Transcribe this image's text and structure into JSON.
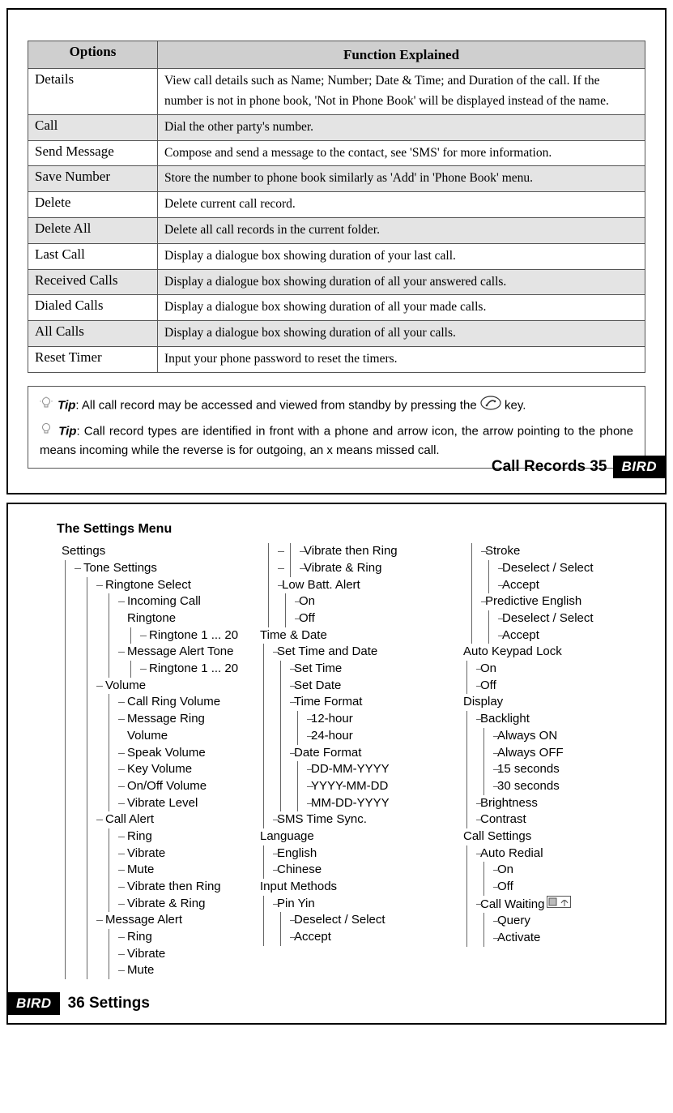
{
  "table": {
    "headers": [
      "Options",
      "Function Explained"
    ],
    "rows": [
      {
        "option": "Details",
        "desc": "View call details such as Name; Number; Date & Time; and Duration of the call. If the number is not in phone book, 'Not in Phone Book' will be displayed instead of the name.",
        "shaded": false
      },
      {
        "option": "Call",
        "desc": "Dial the other party's number.",
        "shaded": true
      },
      {
        "option": "Send Message",
        "desc": "Compose and send a message to the contact, see 'SMS' for more information.",
        "shaded": false
      },
      {
        "option": "Save Number",
        "desc": "Store the number to phone book similarly as 'Add' in 'Phone Book' menu.",
        "shaded": true
      },
      {
        "option": "Delete",
        "desc": "Delete current call record.",
        "shaded": false
      },
      {
        "option": "Delete All",
        "desc": "Delete all call records in the current folder.",
        "shaded": true
      },
      {
        "option": "Last Call",
        "desc": "Display a dialogue box showing duration of your last call.",
        "shaded": false
      },
      {
        "option": "Received Calls",
        "desc": "Display a dialogue box showing duration of all your answered calls.",
        "shaded": true
      },
      {
        "option": "Dialed Calls",
        "desc": "Display a dialogue box showing duration of all your made calls.",
        "shaded": false
      },
      {
        "option": "All Calls",
        "desc": "Display a dialogue box showing duration of all your calls.",
        "shaded": true
      },
      {
        "option": "Reset Timer",
        "desc": "Input your phone password to reset the timers.",
        "shaded": false
      }
    ]
  },
  "tips": {
    "label": "Tip",
    "tip1_a": ": All call record may be accessed and viewed from standby by pressing the ",
    "tip1_b": " key.",
    "tip2": ": Call record types are identified in front with a phone and arrow icon, the arrow pointing to the phone means incoming while the reverse is for outgoing, an x means missed call."
  },
  "footer_top": "Call Records 35",
  "footer_bottom": "36 Settings",
  "logo_text": "BIRD",
  "settings_heading": "The Settings Menu",
  "tree": {
    "col1": [
      {
        "l": "Settings",
        "c": [
          {
            "l": "Tone Settings",
            "c": [
              {
                "l": "Ringtone Select",
                "c": [
                  {
                    "l": "Incoming Call Ringtone",
                    "c": [
                      {
                        "l": "Ringtone 1 ... 20"
                      }
                    ]
                  },
                  {
                    "l": "Message Alert Tone",
                    "c": [
                      {
                        "l": "Ringtone 1 ... 20"
                      }
                    ]
                  }
                ]
              },
              {
                "l": "Volume",
                "c": [
                  {
                    "l": "Call Ring Volume"
                  },
                  {
                    "l": "Message Ring Volume"
                  },
                  {
                    "l": "Speak Volume"
                  },
                  {
                    "l": "Key Volume"
                  },
                  {
                    "l": "On/Off Volume"
                  },
                  {
                    "l": "Vibrate Level"
                  }
                ]
              },
              {
                "l": "Call Alert",
                "c": [
                  {
                    "l": "Ring"
                  },
                  {
                    "l": "Vibrate"
                  },
                  {
                    "l": "Mute"
                  },
                  {
                    "l": "Vibrate then Ring"
                  },
                  {
                    "l": "Vibrate & Ring"
                  }
                ]
              },
              {
                "l": "Message Alert",
                "c": [
                  {
                    "l": "Ring"
                  },
                  {
                    "l": "Vibrate"
                  },
                  {
                    "l": "Mute"
                  }
                ]
              }
            ]
          }
        ]
      }
    ],
    "col2": [
      {
        "l": "Vibrate then Ring",
        "indent": 3
      },
      {
        "l": "Vibrate & Ring",
        "indent": 3
      },
      {
        "l": "Low Batt. Alert",
        "indent": 2,
        "c": [
          {
            "l": "On"
          },
          {
            "l": "Off"
          }
        ]
      },
      {
        "l": "Time & Date",
        "indent": 1,
        "c": [
          {
            "l": "Set Time and Date",
            "c": [
              {
                "l": "Set Time"
              },
              {
                "l": "Set Date"
              },
              {
                "l": "Time Format",
                "c": [
                  {
                    "l": "12-hour"
                  },
                  {
                    "l": "24-hour"
                  }
                ]
              },
              {
                "l": "Date Format",
                "c": [
                  {
                    "l": "DD-MM-YYYY"
                  },
                  {
                    "l": "YYYY-MM-DD"
                  },
                  {
                    "l": "MM-DD-YYYY"
                  }
                ]
              }
            ]
          },
          {
            "l": "SMS Time Sync."
          }
        ]
      },
      {
        "l": "Language",
        "indent": 1,
        "c": [
          {
            "l": "English"
          },
          {
            "l": "Chinese"
          }
        ]
      },
      {
        "l": "Input Methods",
        "indent": 1,
        "c": [
          {
            "l": "Pin Yin",
            "c": [
              {
                "l": "Deselect / Select"
              },
              {
                "l": "Accept"
              }
            ]
          }
        ]
      }
    ],
    "col3": [
      {
        "l": "Stroke",
        "indent": 2,
        "c": [
          {
            "l": "Deselect / Select"
          },
          {
            "l": "Accept"
          }
        ]
      },
      {
        "l": "Predictive English",
        "indent": 2,
        "c": [
          {
            "l": "Deselect / Select"
          },
          {
            "l": "Accept"
          }
        ]
      },
      {
        "l": "Auto Keypad Lock",
        "indent": 1,
        "c": [
          {
            "l": "On"
          },
          {
            "l": "Off"
          }
        ]
      },
      {
        "l": "Display",
        "indent": 1,
        "c": [
          {
            "l": "Backlight",
            "c": [
              {
                "l": "Always ON"
              },
              {
                "l": "Always OFF"
              },
              {
                "l": "15 seconds"
              },
              {
                "l": "30 seconds"
              }
            ]
          },
          {
            "l": "Brightness"
          },
          {
            "l": "Contrast"
          }
        ]
      },
      {
        "l": "Call Settings",
        "indent": 1,
        "c": [
          {
            "l": "Auto Redial",
            "c": [
              {
                "l": "On"
              },
              {
                "l": "Off"
              }
            ]
          },
          {
            "l": "Call Waiting",
            "icon": "sim",
            "c": [
              {
                "l": "Query"
              },
              {
                "l": "Activate"
              }
            ]
          }
        ]
      }
    ]
  }
}
